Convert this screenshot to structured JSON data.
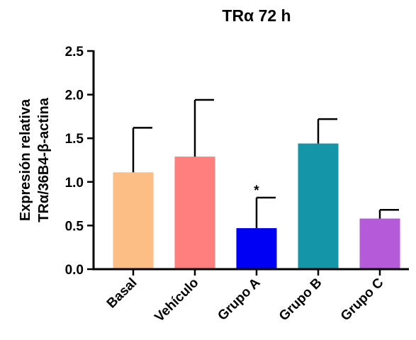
{
  "chart_data": {
    "type": "bar",
    "title": "TRα 72 h",
    "ylabel_lines": [
      "Expresión relativa",
      "TRα/36B4-β-actina"
    ],
    "xlabel": "",
    "ylim": [
      0,
      2.5
    ],
    "yticks": [
      "0.0",
      "0.5",
      "1.0",
      "1.5",
      "2.0",
      "2.5"
    ],
    "categories": [
      "Basal",
      "Vehículo",
      "Grupo A",
      "Grupo B",
      "Grupo C"
    ],
    "values": [
      1.11,
      1.29,
      0.47,
      1.44,
      0.58
    ],
    "errors": [
      0.51,
      0.65,
      0.35,
      0.28,
      0.1
    ],
    "colors": [
      "#FDBE85",
      "#FF7F7F",
      "#0000F5",
      "#1496A8",
      "#B55AD8"
    ],
    "annotations": [
      "",
      "",
      "*",
      "",
      ""
    ],
    "grid": false,
    "legend": "none"
  }
}
